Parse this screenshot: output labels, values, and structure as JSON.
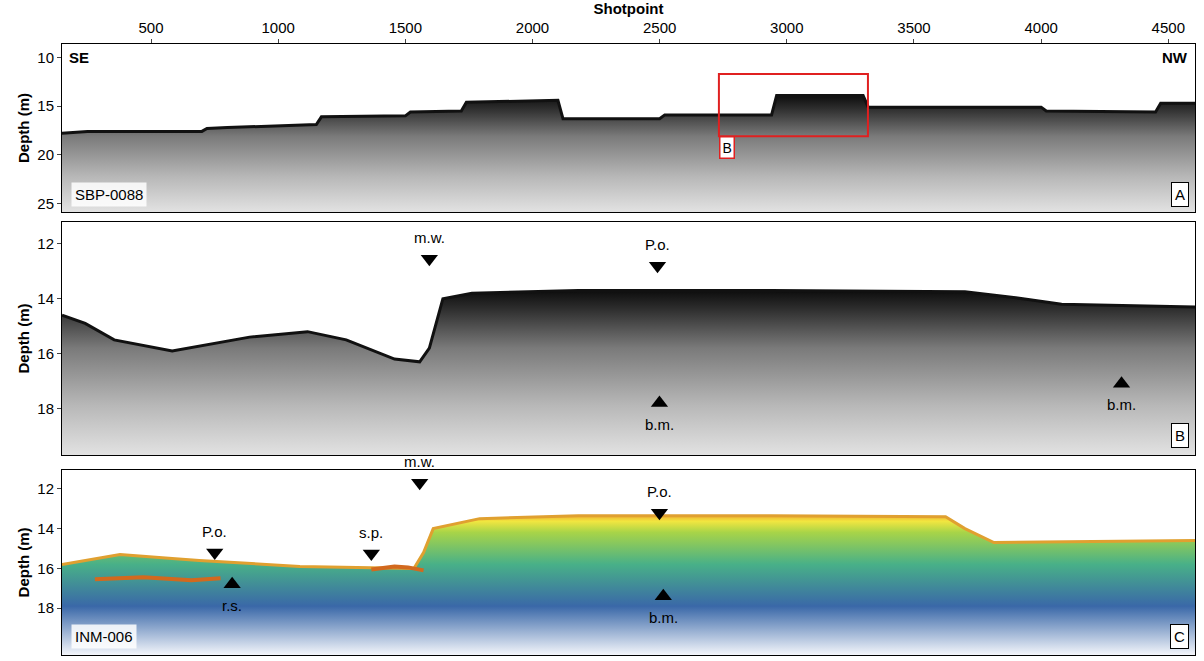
{
  "chart_data": [
    {
      "type": "area",
      "panel": "A",
      "profile": "SBP-0088",
      "direction_labels": [
        "SE",
        "NW"
      ],
      "x_title": "Shotpoint",
      "y_title": "Depth (m)",
      "xlim": [
        150,
        4605
      ],
      "xticks": [
        500,
        1000,
        1500,
        2000,
        2500,
        3000,
        3500,
        4000,
        4500
      ],
      "ylim": [
        8.6,
        25.9
      ],
      "yticks": [
        10,
        15,
        20,
        25
      ],
      "grid": false,
      "color": "#111111",
      "x": [
        150,
        250,
        700,
        720,
        800,
        1150,
        1170,
        1500,
        1520,
        1720,
        1740,
        2100,
        2120,
        2500,
        2520,
        2940,
        2960,
        3300,
        3320,
        4000,
        4020,
        4450,
        4470,
        4605
      ],
      "values": [
        17.8,
        17.6,
        17.6,
        17.3,
        17.2,
        16.9,
        16.1,
        16.0,
        15.6,
        15.5,
        14.6,
        14.4,
        16.3,
        16.3,
        15.9,
        15.9,
        13.9,
        13.9,
        15.1,
        15.1,
        15.5,
        15.6,
        14.7,
        14.7
      ],
      "inset": {
        "label": "B",
        "x": [
          2733,
          3319
        ],
        "y": [
          11.7,
          18.1
        ],
        "color": "#e02020"
      }
    },
    {
      "type": "area",
      "panel": "B",
      "y_title": "Depth (m)",
      "tick_labels": "y",
      "xlim": [
        2733,
        3319
      ],
      "ylim": [
        11.2,
        19.7
      ],
      "yticks": [
        12,
        14,
        16,
        18
      ],
      "grid": false,
      "color": "#111111",
      "x": [
        2733,
        2745,
        2760,
        2790,
        2830,
        2860,
        2880,
        2905,
        2918,
        2923,
        2930,
        2945,
        3000,
        3100,
        3200,
        3230,
        3250,
        3319
      ],
      "values": [
        14.6,
        14.9,
        15.5,
        15.9,
        15.4,
        15.2,
        15.5,
        16.2,
        16.3,
        15.8,
        14.0,
        13.8,
        13.7,
        13.7,
        13.75,
        14.0,
        14.2,
        14.3
      ],
      "annotations": [
        {
          "text": "m.w.",
          "x": 2923,
          "y": 12.55,
          "marker": "triangle-down"
        },
        {
          "text": "P.o.",
          "x": 3041,
          "y": 12.8,
          "marker": "triangle-down"
        },
        {
          "text": "b.m.",
          "x": 3042,
          "y": 17.8,
          "marker": "triangle-up"
        },
        {
          "text": "b.m.",
          "x": 3281,
          "y": 17.1,
          "marker": "triangle-up"
        }
      ]
    },
    {
      "type": "area",
      "panel": "C",
      "profile": "INM-006",
      "y_title": "Depth (m)",
      "tick_labels": "y",
      "xlim": [
        2733,
        3319
      ],
      "ylim": [
        11.05,
        20.35
      ],
      "yticks": [
        12,
        14,
        16,
        18
      ],
      "grid": false,
      "color": "#e0a030",
      "x": [
        2733,
        2763,
        2790,
        2804,
        2856,
        2915,
        2920,
        2925,
        2949,
        3000,
        3100,
        3190,
        3200,
        3215,
        3319
      ],
      "values": [
        15.8,
        15.3,
        15.5,
        15.6,
        15.9,
        16.0,
        15.2,
        14.0,
        13.5,
        13.35,
        13.35,
        13.4,
        14.0,
        14.7,
        14.6
      ],
      "reflectors": [
        {
          "x": [
            2750,
            2775,
            2800,
            2815
          ],
          "values": [
            16.55,
            16.45,
            16.6,
            16.5
          ],
          "color": "#d2691e"
        },
        {
          "x": [
            2893,
            2905,
            2912,
            2920
          ],
          "values": [
            16.05,
            15.9,
            15.95,
            16.1
          ],
          "color": "#d2691e"
        }
      ],
      "annotations": [
        {
          "text": "P.o.",
          "x": 2812,
          "y": 15.2,
          "marker": "triangle-down"
        },
        {
          "text": "r.s.",
          "x": 2821,
          "y": 16.8,
          "marker": "triangle-up"
        },
        {
          "text": "s.p.",
          "x": 2893,
          "y": 15.25,
          "marker": "triangle-down"
        },
        {
          "text": "m.w.",
          "x": 2918,
          "y": 11.7,
          "marker": "triangle-down"
        },
        {
          "text": "P.o.",
          "x": 3042,
          "y": 13.2,
          "marker": "triangle-down"
        },
        {
          "text": "b.m.",
          "x": 3044,
          "y": 17.4,
          "marker": "triangle-up"
        }
      ]
    }
  ]
}
